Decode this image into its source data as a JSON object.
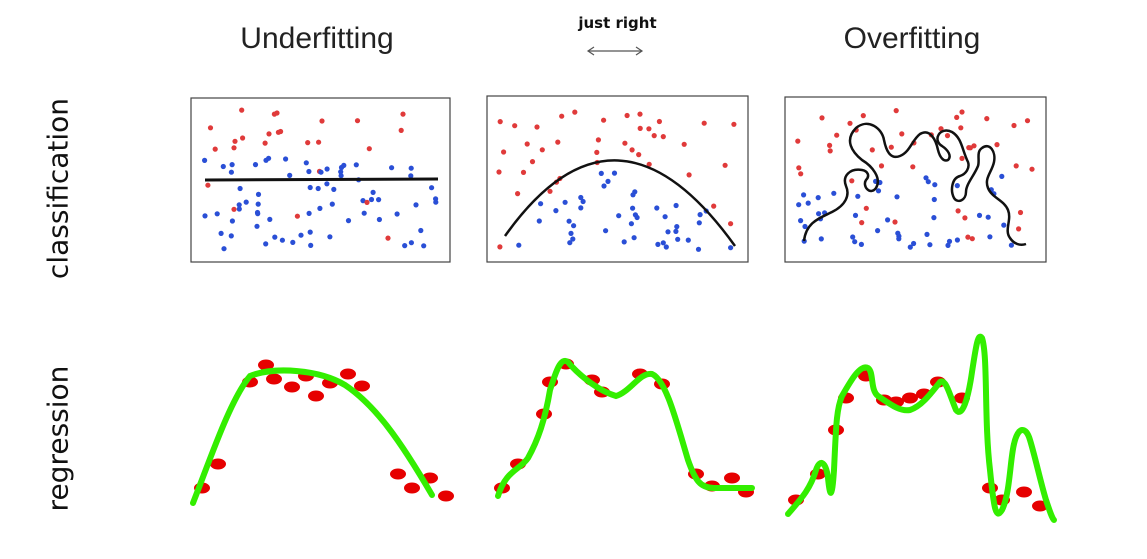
{
  "titles": {
    "underfitting": "Underfitting",
    "just_right": "just right",
    "overfitting": "Overfitting"
  },
  "row_labels": {
    "classification": "classification",
    "regression": "regression"
  },
  "colors": {
    "class_a": "#e03a3a",
    "class_b": "#2a4fd6",
    "boundary": "#111111",
    "regression_point": "#e60000",
    "fit_curve": "#33ee00"
  }
}
